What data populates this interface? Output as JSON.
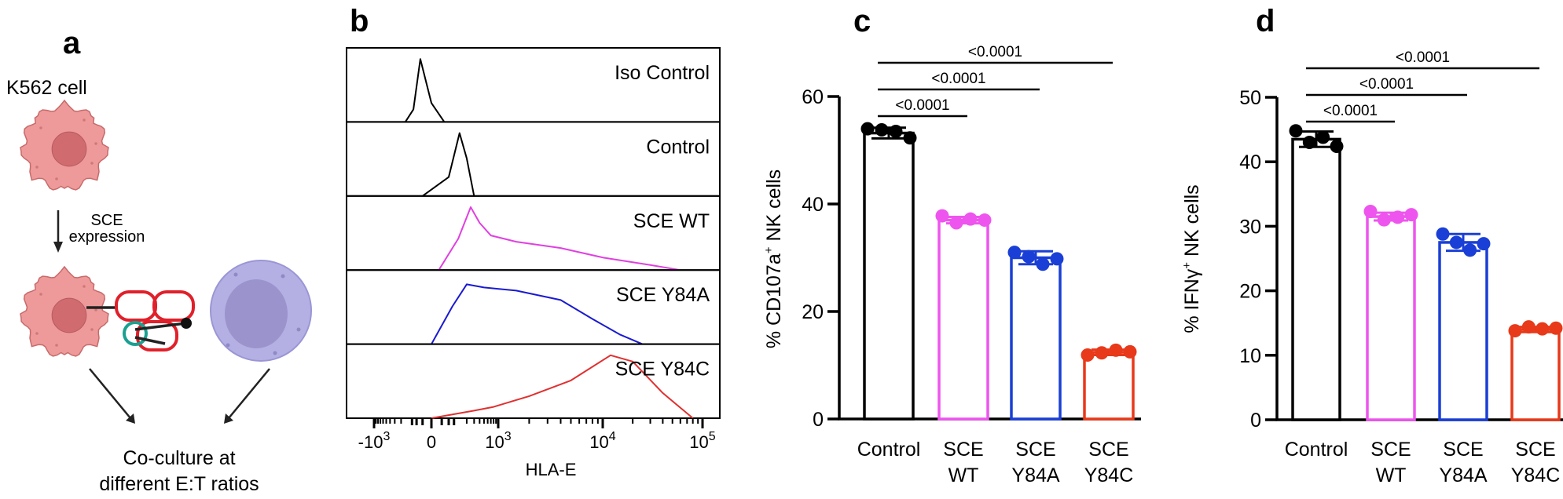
{
  "panel_a": {
    "letter": "a",
    "cell_label": "K562 cell",
    "arrow_label_1": "SCE",
    "arrow_label_2": "expression",
    "result_1": "Co-culture at",
    "result_2": "different E:T ratios",
    "colors": {
      "target_cell": "#ee9a9a",
      "nucleus": "#d06c70",
      "nk_cell": "#aeaae0",
      "receptor": "#e0202a",
      "ligand": "#1aa090"
    }
  },
  "chart_data": [
    {
      "panel": "b",
      "letter": "b",
      "type": "histogram",
      "xlabel": "HLA-E",
      "x_scale": "biexponential",
      "x_ticks": [
        {
          "value": -1000,
          "base": "-10",
          "exp": "3"
        },
        {
          "value": 0,
          "base": "0",
          "exp": ""
        },
        {
          "value": 1000,
          "base": "10",
          "exp": "3"
        },
        {
          "value": 10000,
          "base": "10",
          "exp": "4"
        },
        {
          "value": 100000,
          "base": "10",
          "exp": "5"
        }
      ],
      "series": [
        {
          "name": "Iso Control",
          "color": "#000000",
          "curve": [
            [
              -150,
              0
            ],
            [
              -80,
              20
            ],
            [
              -40,
              100
            ],
            [
              0,
              30
            ],
            [
              40,
              0
            ]
          ]
        },
        {
          "name": "Control",
          "color": "#000000",
          "curve": [
            [
              -30,
              0
            ],
            [
              60,
              30
            ],
            [
              130,
              100
            ],
            [
              200,
              60
            ],
            [
              300,
              0
            ]
          ]
        },
        {
          "name": "SCE WT",
          "color": "#e040e0",
          "curve": [
            [
              20,
              0
            ],
            [
              120,
              50
            ],
            [
              250,
              100
            ],
            [
              400,
              75
            ],
            [
              700,
              55
            ],
            [
              1500,
              45
            ],
            [
              4000,
              35
            ],
            [
              10000,
              20
            ],
            [
              30000,
              8
            ],
            [
              60000,
              0
            ]
          ]
        },
        {
          "name": "SCE Y84A",
          "color": "#1a1ad0",
          "curve": [
            [
              0,
              0
            ],
            [
              80,
              60
            ],
            [
              200,
              95
            ],
            [
              500,
              90
            ],
            [
              1500,
              85
            ],
            [
              4000,
              70
            ],
            [
              8000,
              40
            ],
            [
              15000,
              15
            ],
            [
              25000,
              0
            ]
          ]
        },
        {
          "name": "SCE Y84C",
          "color": "#e03030",
          "curve": [
            [
              0,
              0
            ],
            [
              300,
              12
            ],
            [
              800,
              18
            ],
            [
              2000,
              35
            ],
            [
              5000,
              60
            ],
            [
              12000,
              100
            ],
            [
              20000,
              90
            ],
            [
              40000,
              40
            ],
            [
              80000,
              0
            ]
          ]
        }
      ]
    },
    {
      "panel": "c",
      "letter": "c",
      "type": "bar",
      "ylabel": "% CD107a",
      "ylabel_sup": "+",
      "ylabel_tail": " NK cells",
      "ylim": [
        0,
        60
      ],
      "yticks": [
        "0",
        "20",
        "40",
        "60"
      ],
      "categories": [
        [
          "Control"
        ],
        [
          "SCE",
          "WT"
        ],
        [
          "SCE",
          "Y84A"
        ],
        [
          "SCE",
          "Y84C"
        ]
      ],
      "colors": [
        "#000000",
        "#ee55ee",
        "#1a3fd6",
        "#e8391a"
      ],
      "values": [
        53.2,
        37.0,
        30.0,
        12.4
      ],
      "sd": [
        1.0,
        0.6,
        1.2,
        0.5
      ],
      "points": [
        [
          54.0,
          53.8,
          53.5,
          52.3
        ],
        [
          37.8,
          36.5,
          37.2,
          37.0
        ],
        [
          31.0,
          30.2,
          28.8,
          29.8
        ],
        [
          11.9,
          12.3,
          12.8,
          12.5
        ]
      ],
      "comparisons": [
        {
          "label": "<0.0001",
          "from": 0,
          "to": 1
        },
        {
          "label": "<0.0001",
          "from": 0,
          "to": 2
        },
        {
          "label": "<0.0001",
          "from": 0,
          "to": 3
        }
      ]
    },
    {
      "panel": "d",
      "letter": "d",
      "type": "bar",
      "ylabel": "% IFNγ",
      "ylabel_sup": "+",
      "ylabel_tail": " NK cells",
      "ylim": [
        0,
        50
      ],
      "yticks": [
        "0",
        "10",
        "20",
        "30",
        "40",
        "50"
      ],
      "categories": [
        [
          "Control"
        ],
        [
          "SCE",
          "WT"
        ],
        [
          "SCE",
          "Y84A"
        ],
        [
          "SCE",
          "Y84C"
        ]
      ],
      "colors": [
        "#000000",
        "#ee55ee",
        "#1a3fd6",
        "#e8391a"
      ],
      "values": [
        43.5,
        31.5,
        27.5,
        14.0
      ],
      "sd": [
        1.2,
        0.6,
        1.3,
        0.4
      ],
      "points": [
        [
          44.8,
          43.0,
          43.8,
          42.4
        ],
        [
          32.3,
          31.0,
          31.4,
          31.8
        ],
        [
          28.8,
          27.5,
          26.3,
          27.3
        ],
        [
          13.8,
          14.4,
          14.1,
          14.2
        ]
      ],
      "comparisons": [
        {
          "label": "<0.0001",
          "from": 0,
          "to": 1
        },
        {
          "label": "<0.0001",
          "from": 0,
          "to": 2
        },
        {
          "label": "<0.0001",
          "from": 0,
          "to": 3
        }
      ]
    }
  ]
}
